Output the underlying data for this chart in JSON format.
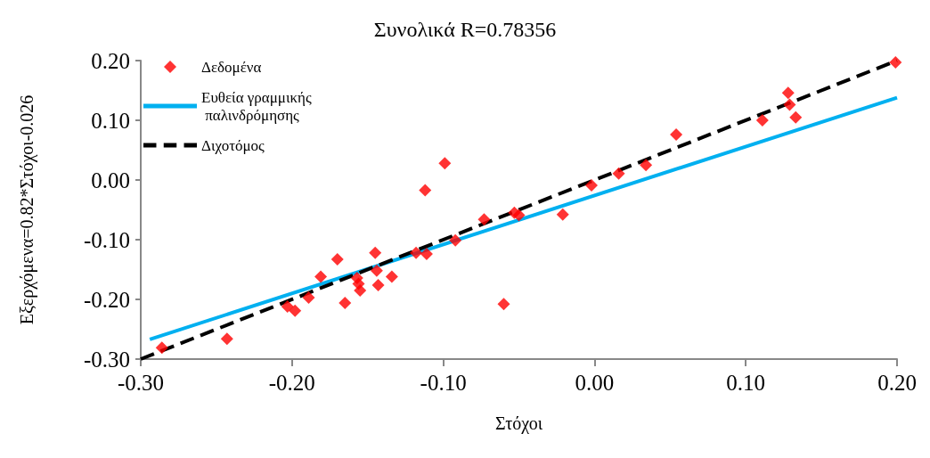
{
  "chart_data": {
    "type": "scatter",
    "title": "Συνολικά R=0.78356",
    "xlabel": "Στόχοι",
    "ylabel": "Εξερχόμενα=0.82*Στόχοι-0.026",
    "xlim": [
      -0.3,
      0.2
    ],
    "ylim": [
      -0.3,
      0.2
    ],
    "xticks": [
      {
        "value": -0.3,
        "label": "-0.30"
      },
      {
        "value": -0.2,
        "label": "-0.20"
      },
      {
        "value": -0.1,
        "label": "-0.10"
      },
      {
        "value": 0,
        "label": "0.00"
      },
      {
        "value": 0.1,
        "label": "0.10"
      },
      {
        "value": 0.2,
        "label": "0.20"
      }
    ],
    "yticks": [
      {
        "value": -0.3,
        "label": "-0.30"
      },
      {
        "value": -0.2,
        "label": "-0.20"
      },
      {
        "value": -0.1,
        "label": "-0.10"
      },
      {
        "value": 0,
        "label": "0.00"
      },
      {
        "value": 0.1,
        "label": "0.10"
      },
      {
        "value": 0.2,
        "label": "0.20"
      }
    ],
    "grid": false,
    "legend": "top left",
    "series": [
      {
        "name": "Δεδομένα",
        "color": "#ff0000",
        "marker": "diamond",
        "x": [
          -0.286,
          -0.243,
          -0.203,
          -0.198,
          -0.189,
          -0.181,
          -0.17,
          -0.165,
          -0.157,
          -0.156,
          -0.155,
          -0.145,
          -0.144,
          -0.143,
          -0.134,
          -0.118,
          -0.112,
          -0.111,
          -0.099,
          -0.092,
          -0.073,
          -0.06,
          -0.053,
          -0.05,
          -0.021,
          -0.002,
          0.016,
          0.034,
          0.054,
          0.111,
          0.128,
          0.129,
          0.133,
          0.199
        ],
        "values": [
          -0.281,
          -0.266,
          -0.212,
          -0.219,
          -0.197,
          -0.162,
          -0.133,
          -0.206,
          -0.164,
          -0.174,
          -0.185,
          -0.122,
          -0.152,
          -0.176,
          -0.162,
          -0.122,
          -0.017,
          -0.124,
          0.028,
          -0.101,
          -0.066,
          -0.208,
          -0.055,
          -0.059,
          -0.058,
          -0.009,
          0.011,
          0.025,
          0.076,
          0.1,
          0.146,
          0.126,
          0.105,
          0.197
        ]
      },
      {
        "name": "Ευθεία γραμμικής παλινδρόμησης",
        "type": "line",
        "color": "#00b0f0",
        "marker": "none",
        "line_style": "solid",
        "x": [
          -0.294,
          0.2
        ],
        "values": [
          -0.267,
          0.138
        ]
      },
      {
        "name": "Διχοτόμος",
        "type": "line",
        "color": "#000000",
        "marker": "none",
        "line_style": "dashed",
        "x": [
          -0.3,
          0.2
        ],
        "values": [
          -0.3,
          0.2
        ]
      }
    ]
  }
}
